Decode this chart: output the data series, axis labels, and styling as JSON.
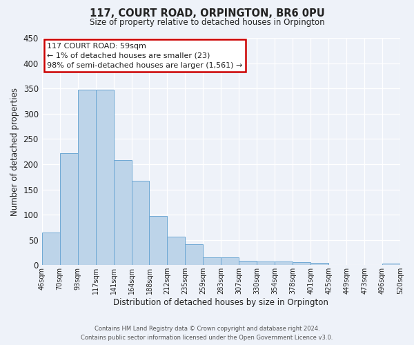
{
  "title": "117, COURT ROAD, ORPINGTON, BR6 0PU",
  "subtitle": "Size of property relative to detached houses in Orpington",
  "xlabel": "Distribution of detached houses by size in Orpington",
  "ylabel": "Number of detached properties",
  "bin_labels": [
    "46sqm",
    "70sqm",
    "93sqm",
    "117sqm",
    "141sqm",
    "164sqm",
    "188sqm",
    "212sqm",
    "235sqm",
    "259sqm",
    "283sqm",
    "307sqm",
    "330sqm",
    "354sqm",
    "378sqm",
    "401sqm",
    "425sqm",
    "449sqm",
    "473sqm",
    "496sqm",
    "520sqm"
  ],
  "bar_values": [
    65,
    222,
    348,
    348,
    208,
    167,
    97,
    57,
    42,
    15,
    15,
    9,
    7,
    7,
    6,
    5,
    0,
    0,
    0,
    3
  ],
  "bar_color": "#bdd4e9",
  "bar_edge_color": "#6ea8d4",
  "annotation_title": "117 COURT ROAD: 59sqm",
  "annotation_line2": "← 1% of detached houses are smaller (23)",
  "annotation_line3": "98% of semi-detached houses are larger (1,561) →",
  "annotation_box_color": "#ffffff",
  "annotation_box_edge_color": "#cc0000",
  "ylim": [
    0,
    450
  ],
  "yticks": [
    0,
    50,
    100,
    150,
    200,
    250,
    300,
    350,
    400,
    450
  ],
  "footer_line1": "Contains HM Land Registry data © Crown copyright and database right 2024.",
  "footer_line2": "Contains public sector information licensed under the Open Government Licence v3.0.",
  "background_color": "#eef2f9",
  "grid_color": "#ffffff",
  "font_color": "#222222"
}
